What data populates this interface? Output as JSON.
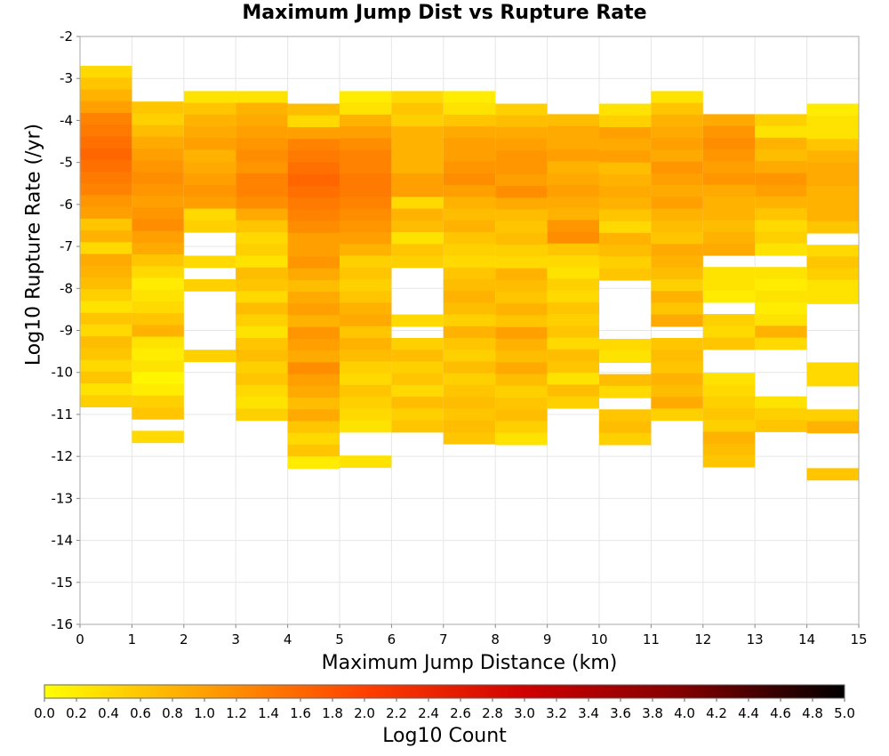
{
  "chart_data": {
    "type": "heatmap",
    "title": "Maximum Jump Dist vs Rupture Rate",
    "xlabel": "Maximum Jump Distance (km)",
    "ylabel": "Log10 Rupture Rate (/yr)",
    "xlim": [
      0,
      15
    ],
    "ylim": [
      -16,
      -2
    ],
    "x_ticks": [
      "0",
      "1",
      "2",
      "3",
      "4",
      "5",
      "6",
      "7",
      "8",
      "9",
      "10",
      "11",
      "12",
      "13",
      "14",
      "15"
    ],
    "y_ticks": [
      "-2",
      "-3",
      "-4",
      "-5",
      "-6",
      "-7",
      "-8",
      "-9",
      "-10",
      "-11",
      "-12",
      "-13",
      "-14",
      "-15",
      "-16"
    ],
    "grid": true,
    "colorbar": {
      "label": "Log10 Count",
      "range": [
        0,
        5
      ],
      "ticks": [
        "0.0",
        "0.2",
        "0.4",
        "0.6",
        "0.8",
        "1.0",
        "1.2",
        "1.4",
        "1.6",
        "1.8",
        "2.0",
        "2.2",
        "2.4",
        "2.6",
        "2.8",
        "3.0",
        "3.2",
        "3.4",
        "3.6",
        "3.8",
        "4.0",
        "4.2",
        "4.4",
        "4.6",
        "4.8",
        "5.0"
      ],
      "colors": [
        "#ffff00",
        "#ffa000",
        "#ff4000",
        "#d00000",
        "#800000",
        "#000000"
      ]
    },
    "bin_height": 0.28,
    "cells": [
      {
        "x": 0,
        "top": -2.7,
        "vals": [
          0.4,
          0.6,
          0.8,
          1.0,
          1.3,
          1.4,
          1.5,
          1.6,
          1.5,
          1.4,
          1.3,
          1.1,
          1.0,
          0.6,
          0.8,
          0.4,
          0.9,
          0.8,
          0.7,
          0.5,
          0.3,
          0.6,
          0.4,
          0.7,
          0.6,
          0.4,
          0.6,
          0.3,
          0.5
        ]
      },
      {
        "x": 1,
        "top": -3.55,
        "vals": [
          0.6,
          0.5,
          0.7,
          0.9,
          1.0,
          1.1,
          1.2,
          1.1,
          1.0,
          1.1,
          1.2,
          1.0,
          0.9,
          0.6,
          0.4,
          0.2,
          0.3,
          0.4,
          0.6,
          0.8,
          0.3,
          0.2,
          0.3,
          0.1,
          0.2,
          0.5,
          0.6,
          null,
          0.4
        ]
      },
      {
        "x": 2,
        "top": -3.3,
        "vals": [
          0.3,
          0.6,
          0.8,
          0.9,
          1.0,
          0.8,
          0.9,
          1.0,
          1.1,
          1.0,
          0.4,
          0.5,
          null,
          null,
          0.4,
          null,
          0.5,
          null,
          null,
          null,
          null,
          null,
          0.5
        ]
      },
      {
        "x": 3,
        "top": -3.3,
        "vals": [
          0.3,
          0.8,
          0.9,
          1.0,
          1.1,
          1.2,
          1.1,
          1.3,
          1.3,
          1.2,
          0.9,
          0.6,
          0.4,
          0.5,
          0.3,
          0.7,
          0.6,
          0.4,
          0.7,
          0.5,
          0.3,
          0.6,
          0.7,
          0.5,
          0.6,
          0.4,
          0.3,
          0.5
        ]
      },
      {
        "x": 4,
        "top": -3.6,
        "vals": [
          0.7,
          0.4,
          1.0,
          1.3,
          1.4,
          1.5,
          1.6,
          1.5,
          1.4,
          1.3,
          1.2,
          1.0,
          1.0,
          1.1,
          0.9,
          0.7,
          0.9,
          1.0,
          0.8,
          1.1,
          1.0,
          0.9,
          1.2,
          1.0,
          0.9,
          0.7,
          0.9,
          0.6,
          0.4,
          0.6,
          0.2
        ]
      },
      {
        "x": 5,
        "top": -3.3,
        "vals": [
          0.2,
          0.3,
          0.8,
          1.0,
          1.2,
          1.3,
          1.3,
          1.4,
          1.4,
          1.3,
          1.2,
          1.1,
          1.0,
          0.8,
          0.5,
          0.6,
          0.5,
          0.6,
          0.8,
          0.9,
          0.6,
          0.8,
          0.7,
          0.5,
          0.4,
          0.6,
          0.5,
          0.4,
          0.3,
          null,
          null,
          0.3
        ]
      },
      {
        "x": 6,
        "top": -3.3,
        "vals": [
          0.4,
          0.6,
          0.5,
          0.8,
          0.8,
          0.8,
          0.8,
          1.0,
          1.0,
          0.4,
          0.8,
          0.7,
          0.3,
          0.6,
          0.5,
          null,
          null,
          null,
          null,
          0.4,
          null,
          0.5,
          0.7,
          0.5,
          0.6,
          0.4,
          0.7,
          0.5,
          0.6
        ]
      },
      {
        "x": 7,
        "top": -3.3,
        "vals": [
          0.2,
          0.3,
          0.6,
          0.9,
          1.0,
          1.0,
          1.1,
          1.2,
          1.0,
          0.8,
          0.7,
          0.8,
          0.6,
          0.5,
          0.4,
          0.6,
          0.7,
          0.8,
          0.7,
          0.5,
          0.8,
          0.6,
          0.5,
          0.7,
          0.5,
          0.6,
          0.7,
          0.6,
          0.7,
          0.6
        ]
      },
      {
        "x": 8,
        "top": -3.6,
        "vals": [
          0.5,
          0.7,
          0.9,
          1.0,
          1.1,
          1.1,
          1.0,
          1.2,
          0.9,
          0.7,
          0.6,
          0.7,
          0.5,
          0.4,
          0.8,
          0.7,
          0.6,
          0.8,
          0.6,
          1.0,
          0.8,
          0.7,
          0.9,
          0.7,
          0.5,
          0.6,
          0.7,
          0.5,
          0.3
        ]
      },
      {
        "x": 9,
        "top": -3.85,
        "vals": [
          0.7,
          0.9,
          0.9,
          1.0,
          0.8,
          0.9,
          1.0,
          0.9,
          0.8,
          1.1,
          1.2,
          0.6,
          0.4,
          0.3,
          0.5,
          0.4,
          0.6,
          0.5,
          0.6,
          0.4,
          0.7,
          0.6,
          0.3,
          0.7,
          0.5
        ]
      },
      {
        "x": 10,
        "top": -3.6,
        "vals": [
          0.3,
          0.5,
          1.0,
          0.9,
          1.0,
          0.7,
          0.8,
          0.9,
          0.8,
          0.6,
          0.4,
          0.8,
          0.7,
          0.5,
          0.6,
          null,
          null,
          null,
          null,
          null,
          0.4,
          0.3,
          null,
          0.7,
          0.4,
          null,
          0.6,
          0.7,
          0.5
        ]
      },
      {
        "x": 11,
        "top": -3.3,
        "vals": [
          0.3,
          0.6,
          0.8,
          0.9,
          1.0,
          0.9,
          1.1,
          1.0,
          0.9,
          1.0,
          0.8,
          0.7,
          0.6,
          0.9,
          0.8,
          0.7,
          0.5,
          0.8,
          0.6,
          0.9,
          null,
          0.6,
          0.7,
          0.6,
          0.8,
          0.7,
          0.9,
          0.5
        ]
      },
      {
        "x": 12,
        "top": -3.85,
        "vals": [
          0.9,
          1.1,
          1.2,
          1.1,
          1.0,
          1.1,
          0.9,
          0.8,
          0.8,
          0.7,
          0.8,
          0.9,
          null,
          0.3,
          0.3,
          0.2,
          null,
          0.5,
          0.4,
          0.6,
          null,
          null,
          0.3,
          0.4,
          0.5,
          0.6,
          0.5,
          0.8,
          0.7,
          0.6
        ]
      },
      {
        "x": 13,
        "top": -3.85,
        "vals": [
          0.5,
          0.3,
          0.8,
          0.7,
          0.9,
          1.1,
          1.0,
          0.8,
          0.6,
          0.4,
          0.5,
          0.3,
          null,
          0.3,
          0.2,
          0.3,
          0.2,
          0.3,
          0.8,
          0.4,
          null,
          null,
          null,
          null,
          0.3,
          0.5,
          0.6
        ]
      },
      {
        "x": 14,
        "top": -3.6,
        "vals": [
          0.2,
          0.3,
          0.3,
          0.6,
          0.8,
          0.9,
          0.9,
          0.8,
          0.8,
          0.8,
          0.6,
          null,
          0.4,
          0.6,
          0.5,
          0.3,
          0.3,
          null,
          null,
          null,
          null,
          null,
          0.4,
          0.4,
          null,
          null,
          0.5,
          0.8,
          null,
          null,
          null,
          0.6
        ]
      }
    ]
  }
}
